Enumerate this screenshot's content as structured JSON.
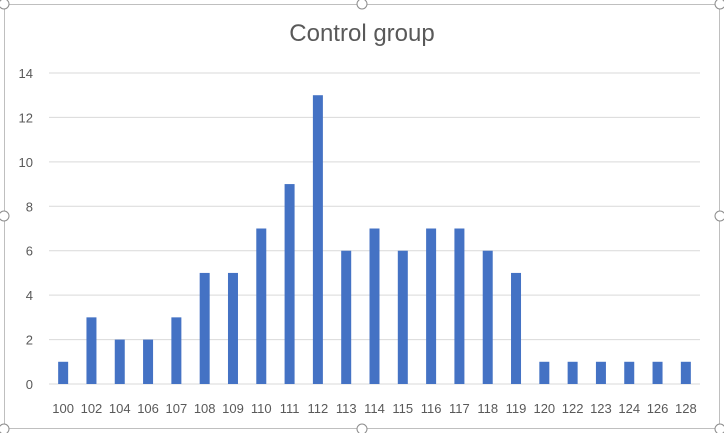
{
  "chart_data": {
    "type": "bar",
    "title": "Control group",
    "xlabel": "",
    "ylabel": "",
    "categories": [
      "100",
      "102",
      "104",
      "106",
      "107",
      "108",
      "109",
      "110",
      "111",
      "112",
      "113",
      "114",
      "115",
      "116",
      "117",
      "118",
      "119",
      "120",
      "122",
      "123",
      "124",
      "126",
      "128"
    ],
    "values": [
      1,
      3,
      2,
      2,
      3,
      5,
      5,
      7,
      9,
      13,
      6,
      7,
      6,
      7,
      7,
      6,
      5,
      1,
      1,
      1,
      1,
      1,
      1
    ],
    "ylim": [
      0,
      14
    ],
    "yticks": [
      0,
      2,
      4,
      6,
      8,
      10,
      12,
      14
    ],
    "grid": true,
    "legend": "none",
    "colors": {
      "bar": "#4472C4",
      "grid": "#D9D9D9",
      "text": "#595959",
      "frame": "#BFBFBF"
    }
  }
}
